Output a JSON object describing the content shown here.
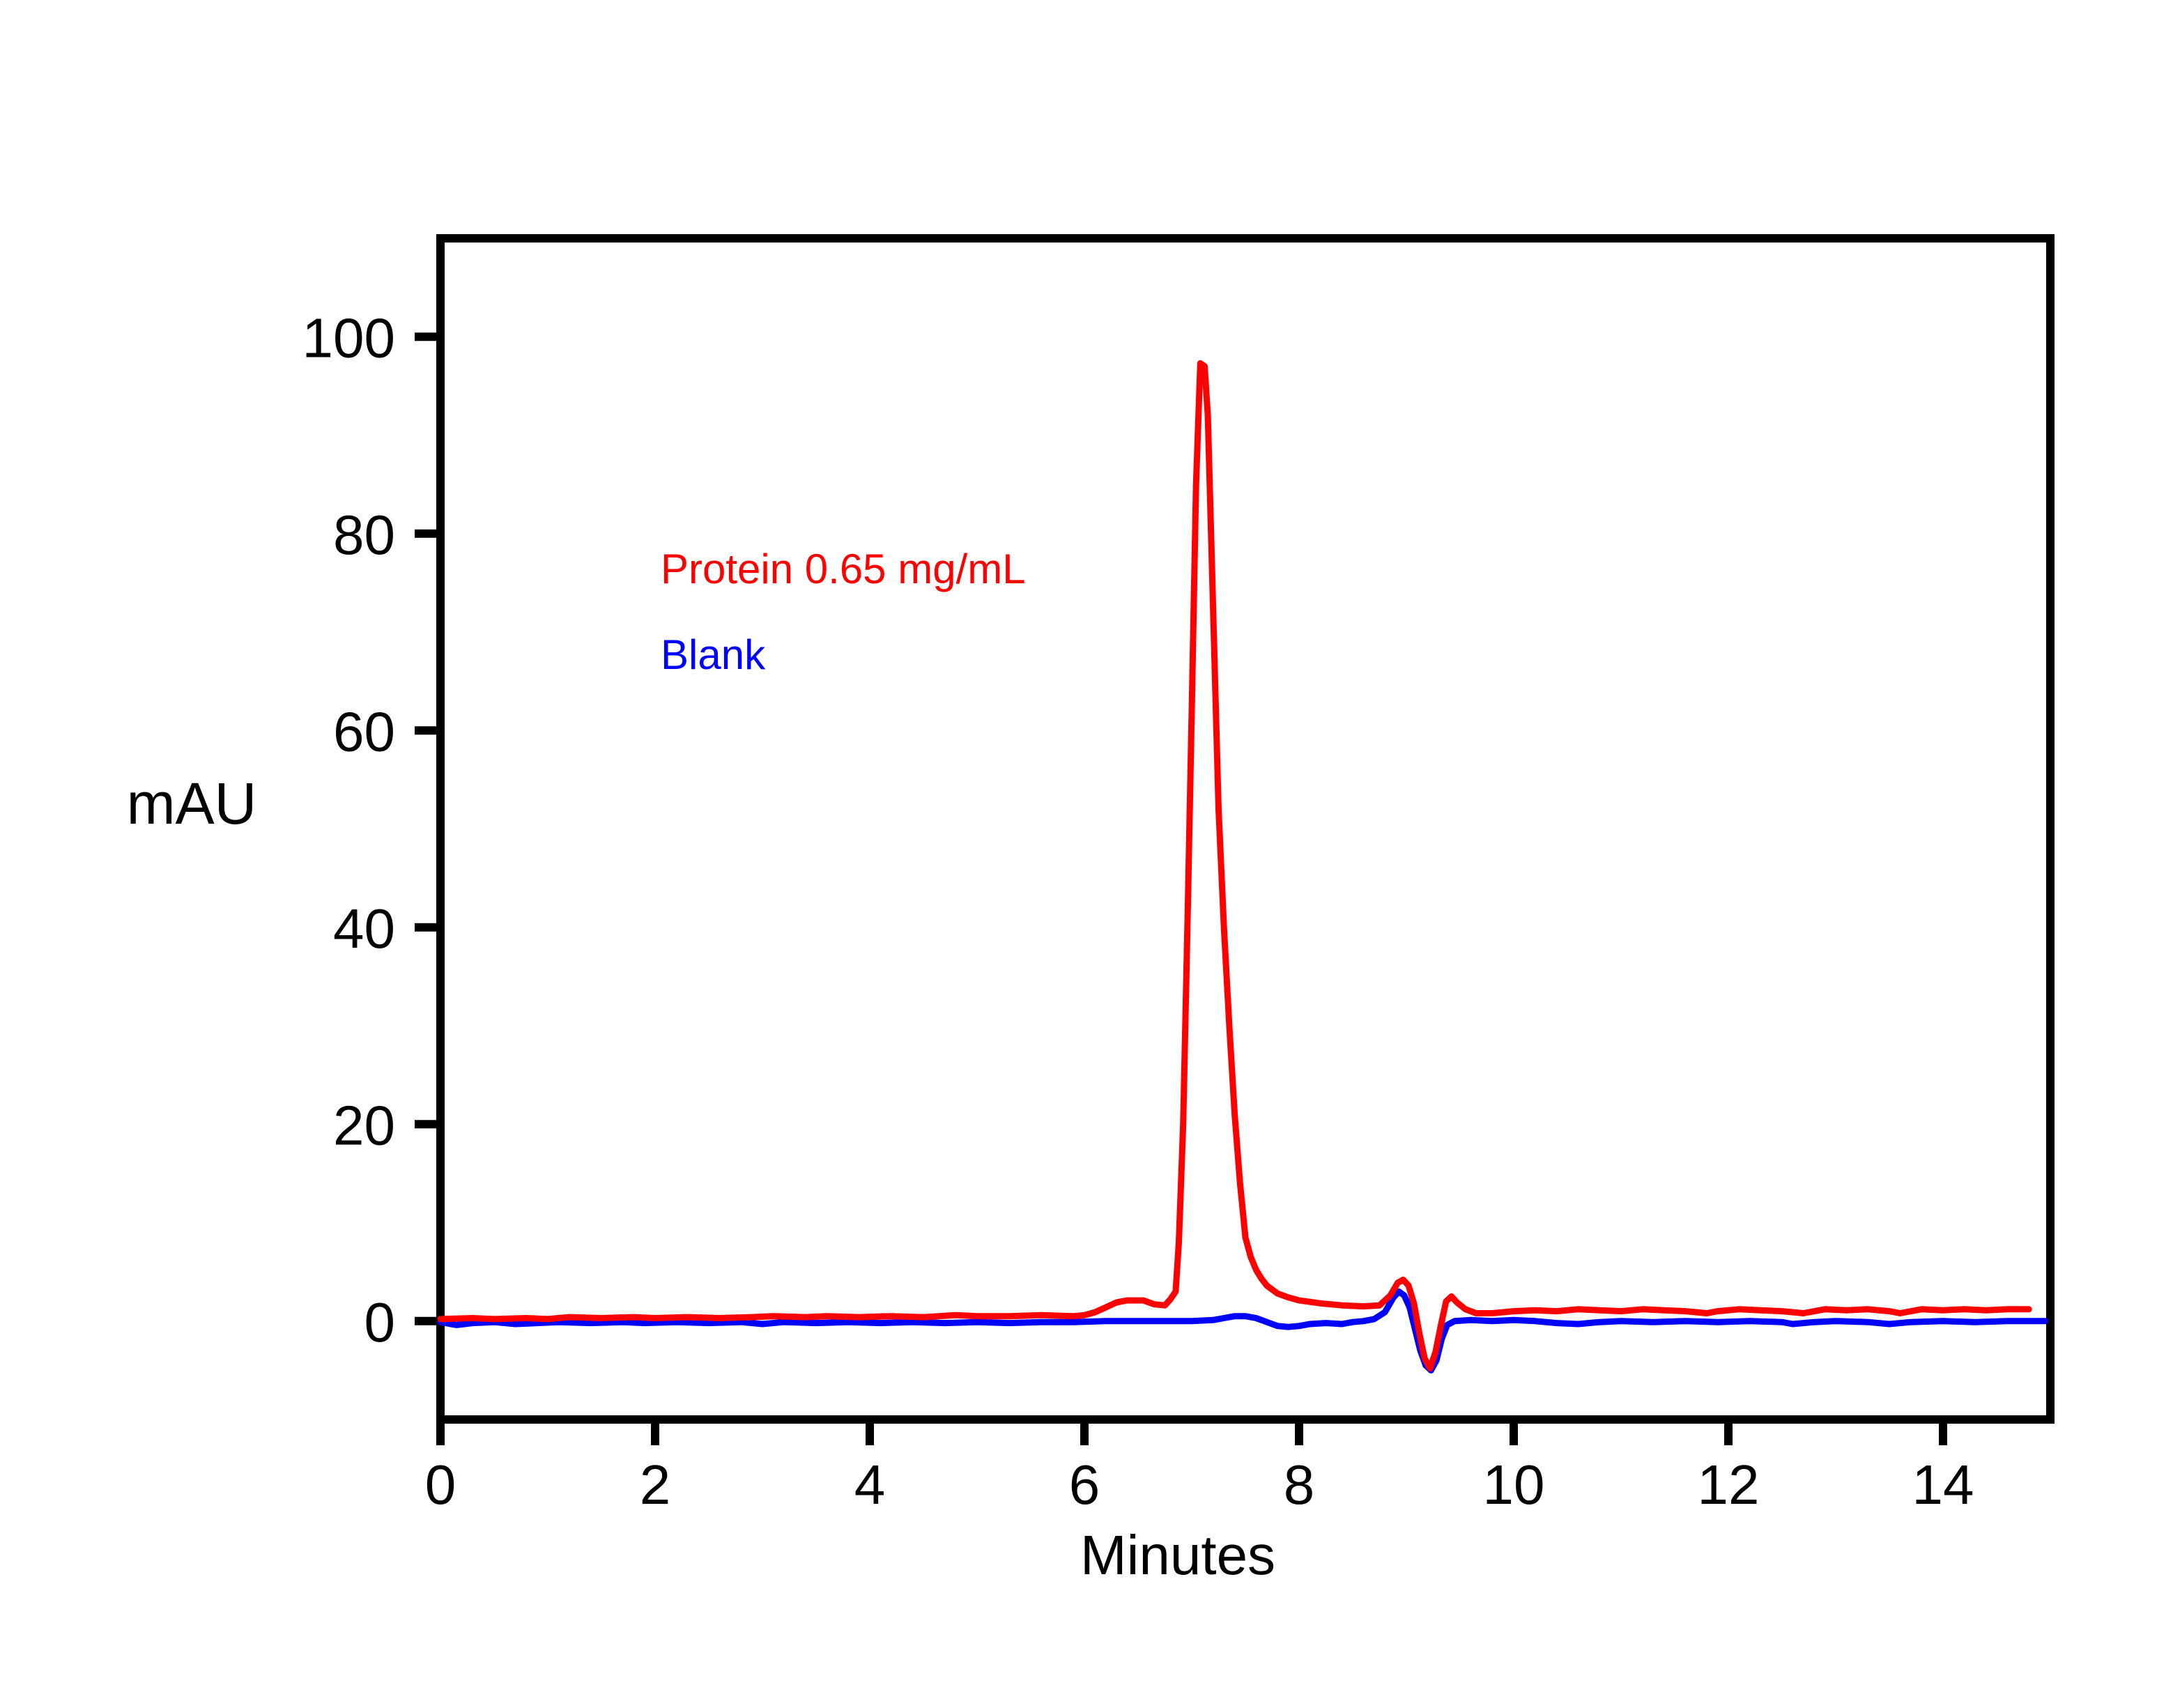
{
  "chart_data": {
    "type": "line",
    "title": "",
    "xlabel": "Minutes",
    "ylabel": "mAU",
    "xlim": [
      0,
      15
    ],
    "ylim": [
      -10,
      110
    ],
    "x_ticks": [
      0,
      2,
      4,
      6,
      8,
      10,
      12,
      14
    ],
    "y_ticks": [
      0,
      20,
      40,
      60,
      80,
      100
    ],
    "grid": false,
    "background_color": "#FFFFFF",
    "axis_color": "#000000",
    "legend_position": "inside-top-left",
    "legend": [
      {
        "label": "Protein 0.65 mg/mL",
        "color": "#FF0000"
      },
      {
        "label": "Blank",
        "color": "#0000FF"
      }
    ],
    "series": [
      {
        "name": "Protein 0.65 mg/mL",
        "color": "#FF0000",
        "peak_annotation": "main peak ~97.3 mAU at ~7.1 min",
        "points": [
          [
            0.0,
            0.2
          ],
          [
            0.3,
            0.3
          ],
          [
            0.5,
            0.2
          ],
          [
            0.8,
            0.3
          ],
          [
            1.0,
            0.2
          ],
          [
            1.2,
            0.4
          ],
          [
            1.5,
            0.3
          ],
          [
            1.8,
            0.4
          ],
          [
            2.0,
            0.3
          ],
          [
            2.3,
            0.4
          ],
          [
            2.6,
            0.3
          ],
          [
            2.9,
            0.4
          ],
          [
            3.1,
            0.5
          ],
          [
            3.4,
            0.4
          ],
          [
            3.6,
            0.5
          ],
          [
            3.9,
            0.4
          ],
          [
            4.2,
            0.5
          ],
          [
            4.5,
            0.4
          ],
          [
            4.8,
            0.6
          ],
          [
            5.0,
            0.5
          ],
          [
            5.3,
            0.5
          ],
          [
            5.6,
            0.6
          ],
          [
            5.9,
            0.5
          ],
          [
            6.0,
            0.6
          ],
          [
            6.1,
            0.9
          ],
          [
            6.2,
            1.4
          ],
          [
            6.3,
            1.9
          ],
          [
            6.4,
            2.1
          ],
          [
            6.55,
            2.1
          ],
          [
            6.65,
            1.7
          ],
          [
            6.75,
            1.6
          ],
          [
            6.8,
            2.2
          ],
          [
            6.85,
            3.0
          ],
          [
            6.88,
            8.0
          ],
          [
            6.92,
            20.0
          ],
          [
            6.96,
            40.0
          ],
          [
            7.0,
            62.0
          ],
          [
            7.04,
            85.0
          ],
          [
            7.08,
            97.3
          ],
          [
            7.12,
            97.0
          ],
          [
            7.15,
            92.0
          ],
          [
            7.2,
            72.0
          ],
          [
            7.25,
            52.0
          ],
          [
            7.3,
            40.0
          ],
          [
            7.35,
            30.0
          ],
          [
            7.4,
            21.0
          ],
          [
            7.45,
            14.0
          ],
          [
            7.5,
            8.5
          ],
          [
            7.55,
            6.5
          ],
          [
            7.6,
            5.2
          ],
          [
            7.65,
            4.3
          ],
          [
            7.7,
            3.6
          ],
          [
            7.8,
            2.8
          ],
          [
            7.9,
            2.4
          ],
          [
            8.0,
            2.1
          ],
          [
            8.2,
            1.8
          ],
          [
            8.4,
            1.6
          ],
          [
            8.6,
            1.5
          ],
          [
            8.75,
            1.6
          ],
          [
            8.85,
            2.6
          ],
          [
            8.92,
            3.9
          ],
          [
            8.97,
            4.2
          ],
          [
            9.02,
            3.6
          ],
          [
            9.07,
            1.8
          ],
          [
            9.12,
            -1.2
          ],
          [
            9.17,
            -3.8
          ],
          [
            9.22,
            -4.8
          ],
          [
            9.27,
            -3.2
          ],
          [
            9.32,
            -0.5
          ],
          [
            9.37,
            2.0
          ],
          [
            9.42,
            2.5
          ],
          [
            9.47,
            1.9
          ],
          [
            9.55,
            1.2
          ],
          [
            9.65,
            0.8
          ],
          [
            9.8,
            0.8
          ],
          [
            10.0,
            1.0
          ],
          [
            10.2,
            1.1
          ],
          [
            10.4,
            1.0
          ],
          [
            10.6,
            1.2
          ],
          [
            10.8,
            1.1
          ],
          [
            11.0,
            1.0
          ],
          [
            11.2,
            1.2
          ],
          [
            11.4,
            1.1
          ],
          [
            11.6,
            1.0
          ],
          [
            11.8,
            0.8
          ],
          [
            11.9,
            1.0
          ],
          [
            12.1,
            1.2
          ],
          [
            12.3,
            1.1
          ],
          [
            12.5,
            1.0
          ],
          [
            12.7,
            0.8
          ],
          [
            12.9,
            1.2
          ],
          [
            13.1,
            1.1
          ],
          [
            13.3,
            1.2
          ],
          [
            13.5,
            1.0
          ],
          [
            13.6,
            0.8
          ],
          [
            13.8,
            1.2
          ],
          [
            14.0,
            1.1
          ],
          [
            14.2,
            1.2
          ],
          [
            14.4,
            1.1
          ],
          [
            14.6,
            1.2
          ],
          [
            14.8,
            1.2
          ]
        ]
      },
      {
        "name": "Blank",
        "color": "#0000FF",
        "peak_annotation": "system artifact: +3 mAU at ~8.95 min, -5 mAU at ~9.2 min",
        "points": [
          [
            0.0,
            -0.1
          ],
          [
            0.15,
            -0.4
          ],
          [
            0.3,
            -0.2
          ],
          [
            0.5,
            -0.1
          ],
          [
            0.7,
            -0.3
          ],
          [
            0.9,
            -0.2
          ],
          [
            1.1,
            -0.1
          ],
          [
            1.4,
            -0.2
          ],
          [
            1.7,
            -0.1
          ],
          [
            1.9,
            -0.2
          ],
          [
            2.2,
            -0.1
          ],
          [
            2.5,
            -0.2
          ],
          [
            2.8,
            -0.1
          ],
          [
            3.0,
            -0.3
          ],
          [
            3.2,
            -0.1
          ],
          [
            3.5,
            -0.2
          ],
          [
            3.8,
            -0.1
          ],
          [
            4.1,
            -0.2
          ],
          [
            4.4,
            -0.1
          ],
          [
            4.7,
            -0.2
          ],
          [
            5.0,
            -0.1
          ],
          [
            5.3,
            -0.2
          ],
          [
            5.6,
            -0.1
          ],
          [
            5.9,
            -0.1
          ],
          [
            6.2,
            0.0
          ],
          [
            6.6,
            0.0
          ],
          [
            7.0,
            0.0
          ],
          [
            7.2,
            0.1
          ],
          [
            7.3,
            0.3
          ],
          [
            7.4,
            0.5
          ],
          [
            7.5,
            0.5
          ],
          [
            7.6,
            0.3
          ],
          [
            7.7,
            -0.1
          ],
          [
            7.8,
            -0.5
          ],
          [
            7.9,
            -0.6
          ],
          [
            8.0,
            -0.5
          ],
          [
            8.1,
            -0.3
          ],
          [
            8.25,
            -0.2
          ],
          [
            8.4,
            -0.3
          ],
          [
            8.5,
            -0.1
          ],
          [
            8.6,
            0.0
          ],
          [
            8.7,
            0.2
          ],
          [
            8.8,
            0.9
          ],
          [
            8.88,
            2.4
          ],
          [
            8.93,
            3.0
          ],
          [
            8.98,
            2.6
          ],
          [
            9.03,
            1.4
          ],
          [
            9.08,
            -0.8
          ],
          [
            9.13,
            -3.0
          ],
          [
            9.18,
            -4.5
          ],
          [
            9.23,
            -5.0
          ],
          [
            9.28,
            -4.0
          ],
          [
            9.33,
            -1.8
          ],
          [
            9.38,
            -0.4
          ],
          [
            9.45,
            0.0
          ],
          [
            9.6,
            0.1
          ],
          [
            9.8,
            0.0
          ],
          [
            10.0,
            0.1
          ],
          [
            10.2,
            0.0
          ],
          [
            10.4,
            -0.2
          ],
          [
            10.6,
            -0.3
          ],
          [
            10.8,
            -0.1
          ],
          [
            11.0,
            0.0
          ],
          [
            11.3,
            -0.1
          ],
          [
            11.6,
            0.0
          ],
          [
            11.9,
            -0.1
          ],
          [
            12.2,
            0.0
          ],
          [
            12.5,
            -0.1
          ],
          [
            12.6,
            -0.3
          ],
          [
            12.8,
            -0.1
          ],
          [
            13.0,
            0.0
          ],
          [
            13.3,
            -0.1
          ],
          [
            13.5,
            -0.3
          ],
          [
            13.7,
            -0.1
          ],
          [
            14.0,
            0.0
          ],
          [
            14.3,
            -0.1
          ],
          [
            14.6,
            0.0
          ],
          [
            14.95,
            0.0
          ]
        ]
      }
    ]
  }
}
